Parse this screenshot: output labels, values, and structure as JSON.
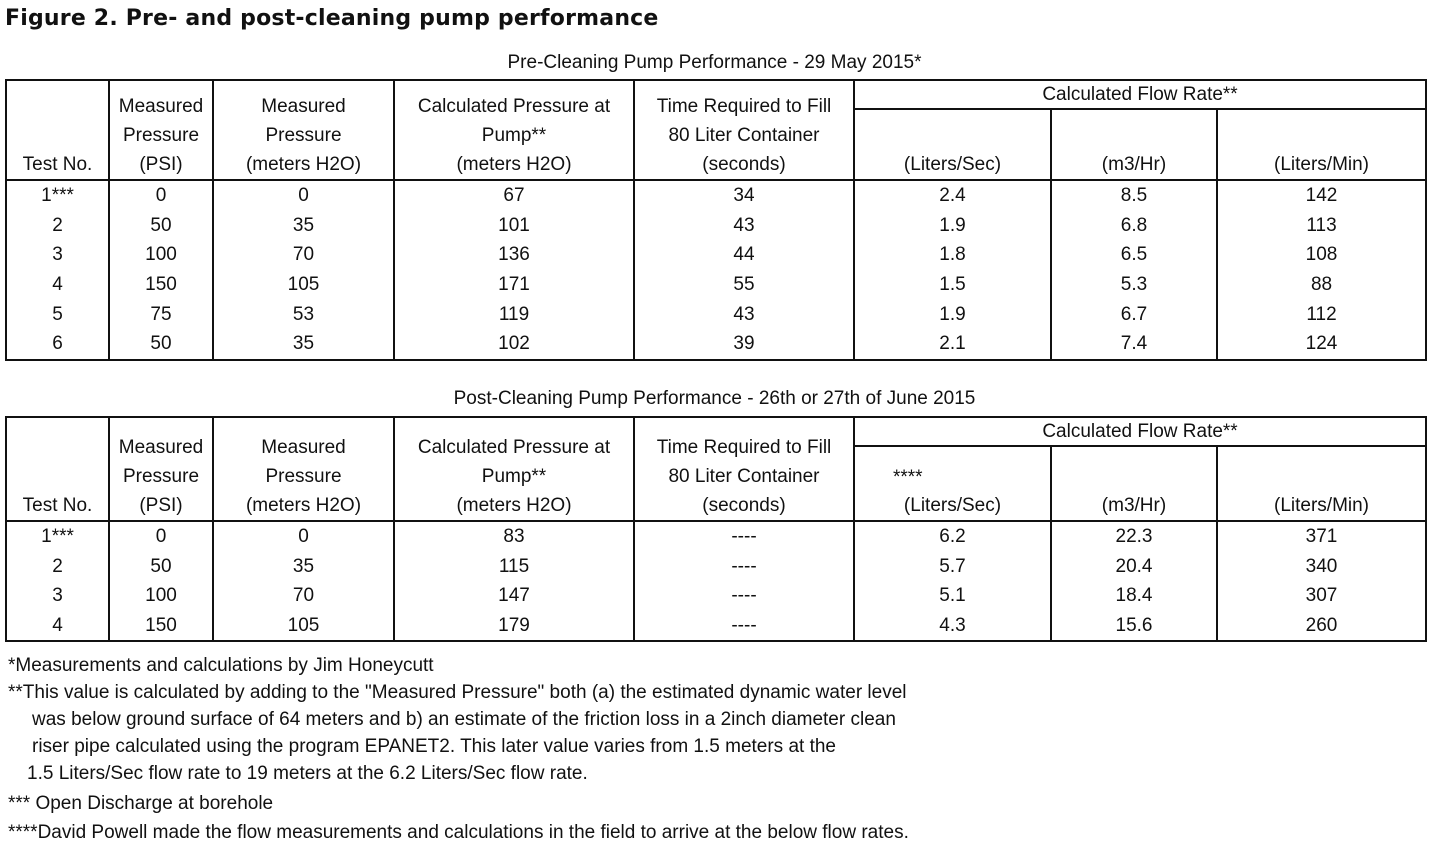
{
  "figure_title": "Figure 2. Pre- and post-cleaning pump performance",
  "tables": [
    {
      "caption": "Pre-Cleaning Pump Performance - 29 May 2015*",
      "headers": [
        "Test No.",
        "Measured\nPressure\n(PSI)",
        "Measured\nPressure\n(meters H2O)",
        "Calculated Pressure at\nPump**\n(meters H2O)",
        "Time Required to Fill\n80 Liter Container\n(seconds)"
      ],
      "group_header": "Calculated Flow Rate**",
      "sub_headers": [
        "(Liters/Sec)",
        "(m3/Hr)",
        "(Liters/Min)"
      ],
      "sub_header_note": "",
      "rows": [
        [
          "1***",
          "0",
          "0",
          "67",
          "34",
          "2.4",
          "8.5",
          "142"
        ],
        [
          "2",
          "50",
          "35",
          "101",
          "43",
          "1.9",
          "6.8",
          "113"
        ],
        [
          "3",
          "100",
          "70",
          "136",
          "44",
          "1.8",
          "6.5",
          "108"
        ],
        [
          "4",
          "150",
          "105",
          "171",
          "55",
          "1.5",
          "5.3",
          "88"
        ],
        [
          "5",
          "75",
          "53",
          "119",
          "43",
          "1.9",
          "6.7",
          "112"
        ],
        [
          "6",
          "50",
          "35",
          "102",
          "39",
          "2.1",
          "7.4",
          "124"
        ]
      ]
    },
    {
      "caption": "Post-Cleaning Pump Performance - 26th or 27th of June 2015",
      "headers": [
        "Test No.",
        "Measured\nPressure\n(PSI)",
        "Measured\nPressure\n(meters H2O)",
        "Calculated Pressure at\nPump**\n(meters H2O)",
        "Time Required to Fill\n80 Liter Container\n(seconds)"
      ],
      "group_header": "Calculated Flow Rate**",
      "sub_headers": [
        "(Liters/Sec)",
        "(m3/Hr)",
        "(Liters/Min)"
      ],
      "sub_header_note": "****",
      "rows": [
        [
          "1***",
          "0",
          "0",
          "83",
          "----",
          "6.2",
          "22.3",
          "371"
        ],
        [
          "2",
          "50",
          "35",
          "115",
          "----",
          "5.7",
          "20.4",
          "340"
        ],
        [
          "3",
          "100",
          "70",
          "147",
          "----",
          "5.1",
          "18.4",
          "307"
        ],
        [
          "4",
          "150",
          "105",
          "179",
          "----",
          "4.3",
          "15.6",
          "260"
        ]
      ]
    }
  ],
  "footnotes": [
    "*Measurements and calculations by Jim Honeycutt",
    "**This value is calculated by adding to the \"Measured Pressure\" both (a) the estimated dynamic water level",
    "was below ground surface of 64 meters and b) an estimate of the friction loss in a 2inch diameter clean",
    "riser pipe calculated using the program EPANET2.  This later value varies from 1.5 meters at the",
    "1.5 Liters/Sec flow rate to 19 meters at the 6.2 Liters/Sec flow rate.",
    "*** Open Discharge at borehole",
    "****David Powell made the flow measurements and calculations in the field to arrive at the below flow rates."
  ]
}
